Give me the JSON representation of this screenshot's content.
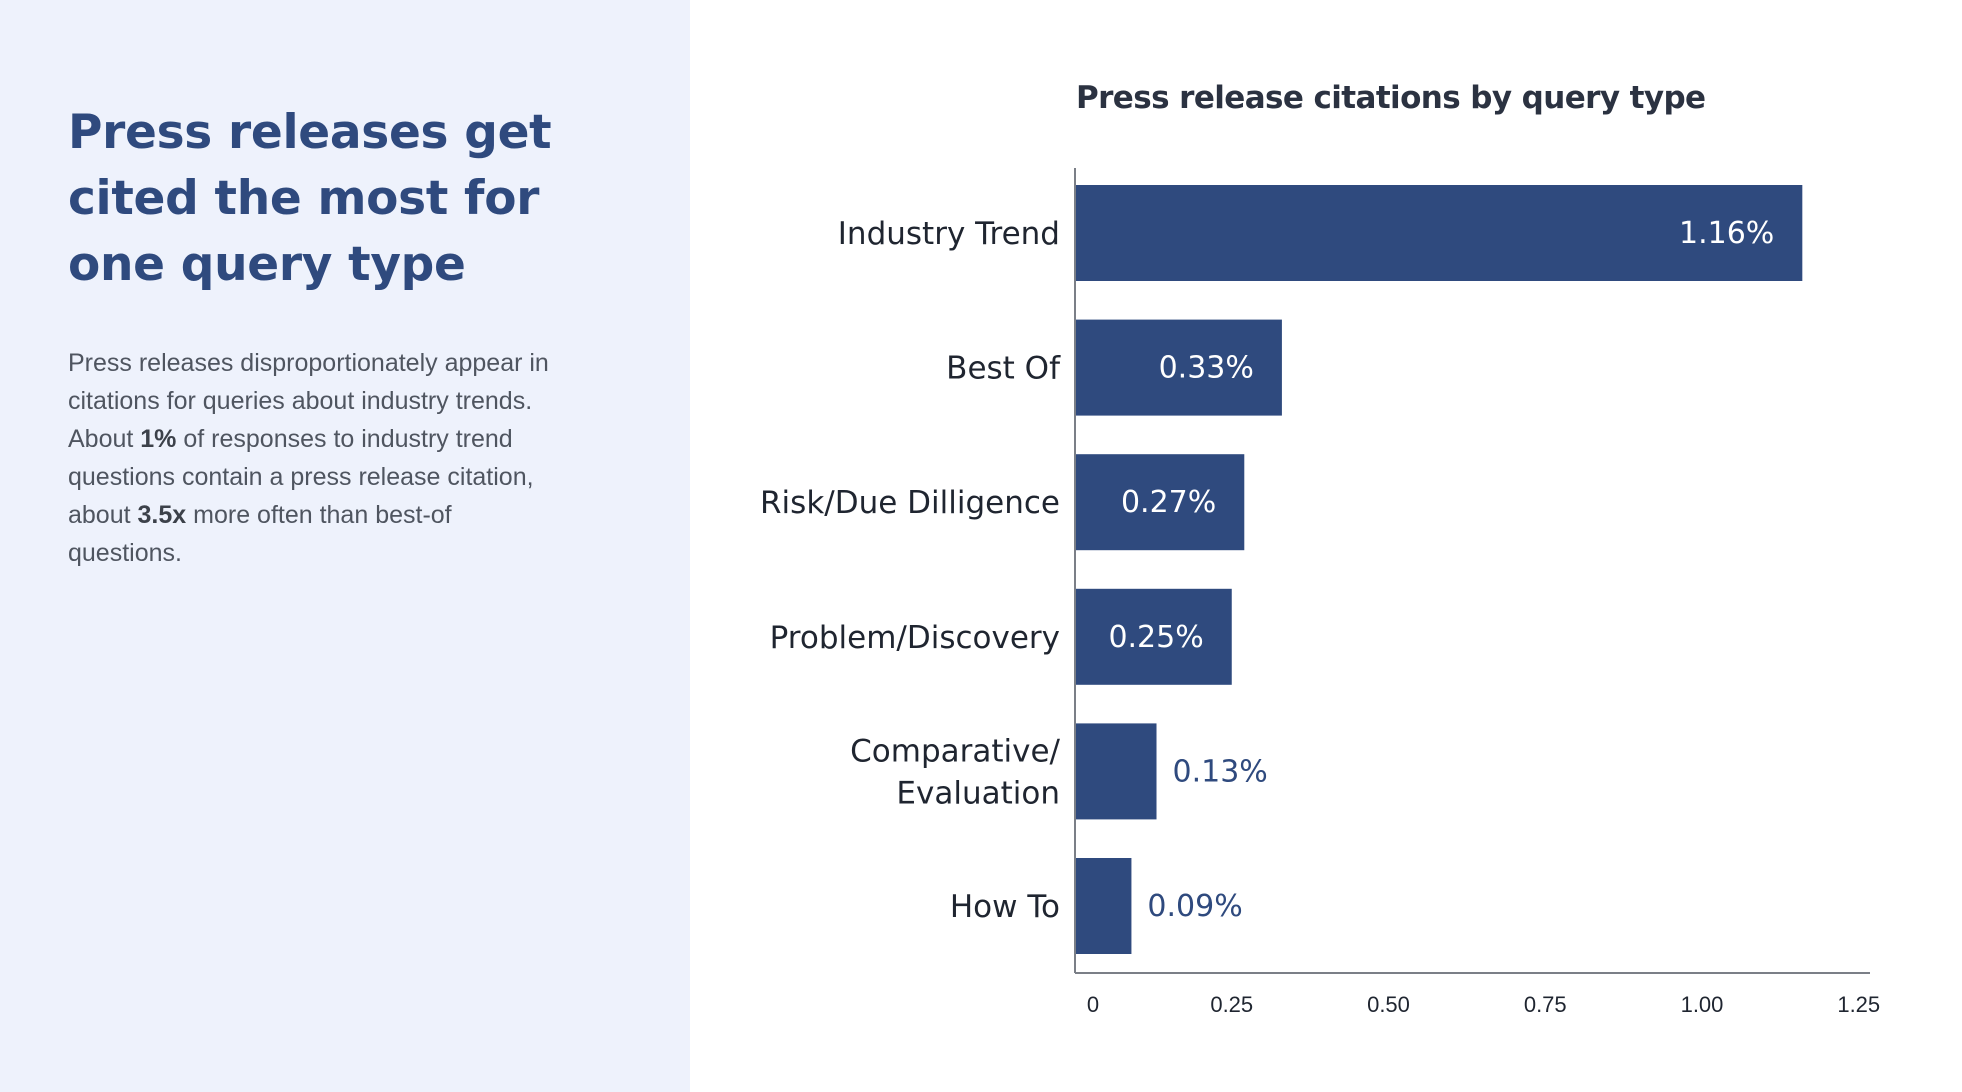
{
  "panel": {
    "headline": "Press releases get cited the most for one query type",
    "body": [
      {
        "text": "Press releases disproportionately appear in citations for queries about industry trends. About ",
        "bold": false
      },
      {
        "text": "1%",
        "bold": true
      },
      {
        "text": " of responses to industry trend questions contain a press release citation, about ",
        "bold": false
      },
      {
        "text": "3.5x",
        "bold": true
      },
      {
        "text": " more often than best-of questions.",
        "bold": false
      }
    ]
  },
  "colors": {
    "bar": "#2f4a7e",
    "label_inside": "#ffffff",
    "label_outside": "#2f4a7e",
    "axis": "#7b7f87",
    "panel_bg": "#eef2fc"
  },
  "chart_data": {
    "type": "bar",
    "orientation": "horizontal",
    "title": "Press release citations by query type",
    "categories": [
      [
        "Industry Trend"
      ],
      [
        "Best Of"
      ],
      [
        "Risk/Due Dilligence"
      ],
      [
        "Problem/Discovery"
      ],
      [
        "Comparative/",
        "Evaluation"
      ],
      [
        "How To"
      ]
    ],
    "values": [
      1.16,
      0.33,
      0.27,
      0.25,
      0.13,
      0.09
    ],
    "value_labels": [
      "1.16%",
      "0.33%",
      "0.27%",
      "0.25%",
      "0.13%",
      "0.09%"
    ],
    "xlim": [
      0,
      1.25
    ],
    "xticks": [
      0,
      0.25,
      0.5,
      0.75,
      1.0,
      1.25
    ],
    "xtick_labels": [
      "0",
      "0.25",
      "0.50",
      "0.75",
      "1.00",
      "1.25"
    ],
    "xlabel": "",
    "ylabel": "",
    "grid": false,
    "legend": "none"
  }
}
